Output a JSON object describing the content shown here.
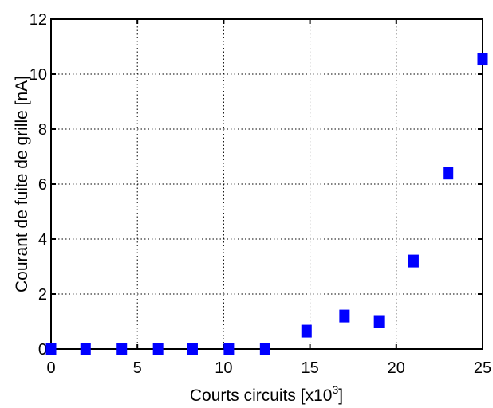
{
  "chart_data": {
    "type": "scatter",
    "xlabel": "Courts circuits [x10",
    "xlabel_sup": "3",
    "xlabel_end": "]",
    "ylabel": "Courant de fuite de grille [nA]",
    "xlim": [
      0,
      25
    ],
    "ylim": [
      0,
      12
    ],
    "xticks": [
      0,
      5,
      10,
      15,
      20,
      25
    ],
    "yticks": [
      0,
      2,
      4,
      6,
      8,
      10,
      12
    ],
    "grid": true,
    "marker": "square",
    "color": "#0000ff",
    "points": [
      {
        "x": 0,
        "y": 0
      },
      {
        "x": 2,
        "y": 0
      },
      {
        "x": 4.1,
        "y": 0
      },
      {
        "x": 6.2,
        "y": 0
      },
      {
        "x": 8.2,
        "y": 0
      },
      {
        "x": 10.3,
        "y": 0
      },
      {
        "x": 12.4,
        "y": 0
      },
      {
        "x": 14.8,
        "y": 0.65
      },
      {
        "x": 17,
        "y": 1.2
      },
      {
        "x": 19,
        "y": 1
      },
      {
        "x": 21,
        "y": 3.2
      },
      {
        "x": 23,
        "y": 6.4
      },
      {
        "x": 25,
        "y": 10.55
      }
    ]
  }
}
